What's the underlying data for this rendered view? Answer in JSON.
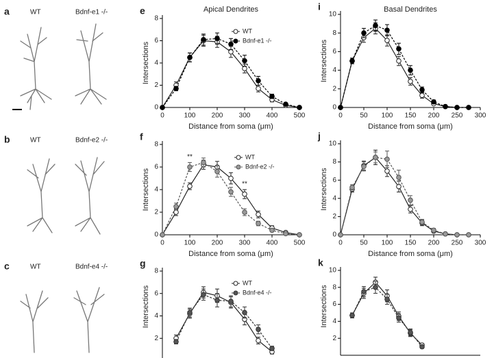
{
  "neurons": [
    {
      "letter": "a",
      "labels": [
        "WT",
        "Bdnf-e1 -/-"
      ]
    },
    {
      "letter": "b",
      "labels": [
        "WT",
        "Bdnf-e2 -/-"
      ]
    },
    {
      "letter": "c",
      "labels": [
        "WT",
        "Bdnf-e4 -/-"
      ]
    }
  ],
  "chart_data": [
    {
      "type": "line",
      "panel": "e",
      "title": "Apical Dendrites",
      "x_label": "Distance from soma (μm)",
      "y_label": "Intersections",
      "x": [
        0,
        50,
        100,
        150,
        200,
        250,
        300,
        350,
        400,
        450,
        500
      ],
      "xlim": [
        0,
        500
      ],
      "xticks": [
        0,
        100,
        200,
        300,
        400,
        500
      ],
      "ylim": [
        0,
        8
      ],
      "yticks": [
        0,
        2,
        4,
        6,
        8
      ],
      "series": [
        {
          "name": "WT",
          "color": "#222222",
          "fill": "#ffffff",
          "dashed": false,
          "values": [
            0,
            2.0,
            4.5,
            6.0,
            5.9,
            5.0,
            3.5,
            1.7,
            0.7,
            0.2,
            0
          ],
          "errors": [
            0,
            0.3,
            0.4,
            0.5,
            0.5,
            0.5,
            0.4,
            0.3,
            0.2,
            0.1,
            0
          ]
        },
        {
          "name": "Bdnf-e1 -/-",
          "color": "#000000",
          "fill": "#000000",
          "dashed": true,
          "values": [
            0,
            1.7,
            4.5,
            6.1,
            6.2,
            5.7,
            4.2,
            2.4,
            1.0,
            0.3,
            0
          ],
          "errors": [
            0,
            0.2,
            0.4,
            0.5,
            0.5,
            0.5,
            0.5,
            0.4,
            0.2,
            0.1,
            0
          ]
        }
      ]
    },
    {
      "type": "line",
      "panel": "f",
      "x_label": "Distance from soma (μm)",
      "y_label": "Intersections",
      "annotations": [
        "**",
        "**"
      ],
      "x": [
        0,
        50,
        100,
        150,
        200,
        250,
        300,
        350,
        400,
        450,
        500
      ],
      "xlim": [
        0,
        500
      ],
      "xticks": [
        0,
        100,
        200,
        300,
        400,
        500
      ],
      "ylim": [
        0,
        8
      ],
      "yticks": [
        0,
        2,
        4,
        6,
        8
      ],
      "series": [
        {
          "name": "WT",
          "color": "#222222",
          "fill": "#ffffff",
          "dashed": false,
          "values": [
            0,
            2.0,
            4.3,
            6.2,
            6.0,
            5.0,
            3.6,
            1.8,
            0.6,
            0.2,
            0
          ],
          "errors": [
            0,
            0.3,
            0.3,
            0.4,
            0.5,
            0.5,
            0.4,
            0.3,
            0.2,
            0.1,
            0
          ]
        },
        {
          "name": "Bdnf-e2 -/-",
          "color": "#555555",
          "fill": "#999999",
          "dashed": true,
          "values": [
            0,
            2.5,
            6.0,
            6.4,
            5.6,
            3.8,
            2.0,
            1.0,
            0.4,
            0.1,
            0
          ],
          "errors": [
            0,
            0.3,
            0.4,
            0.4,
            0.5,
            0.4,
            0.3,
            0.2,
            0.1,
            0.1,
            0
          ]
        }
      ]
    },
    {
      "type": "line",
      "panel": "g",
      "y_label": "Intersections",
      "x": [
        50,
        100,
        150,
        200,
        250,
        300,
        350,
        400
      ],
      "xlim": [
        0,
        500
      ],
      "ylim": [
        0,
        8
      ],
      "yticks": [
        2,
        4,
        6,
        8
      ],
      "series": [
        {
          "name": "WT",
          "color": "#222222",
          "fill": "#ffffff",
          "dashed": false,
          "values": [
            2.0,
            4.2,
            6.1,
            5.8,
            5.2,
            3.7,
            1.8,
            0.8
          ],
          "errors": [
            0.3,
            0.4,
            0.5,
            0.6,
            0.5,
            0.5,
            0.3,
            0.2
          ]
        },
        {
          "name": "Bdnf-e4 -/-",
          "color": "#333333",
          "fill": "#555555",
          "dashed": true,
          "values": [
            1.7,
            4.3,
            5.9,
            5.4,
            5.3,
            4.3,
            2.8,
            1.1
          ],
          "errors": [
            0.2,
            0.4,
            0.5,
            0.6,
            0.5,
            0.5,
            0.4,
            0.2
          ]
        }
      ]
    },
    {
      "type": "line",
      "panel": "i",
      "title": "Basal Dendrites",
      "x_label": "Distance from soma (μm)",
      "y_label": "Intersections",
      "x": [
        0,
        25,
        50,
        75,
        100,
        125,
        150,
        175,
        200,
        225,
        250,
        275
      ],
      "xlim": [
        0,
        300
      ],
      "xticks": [
        0,
        50,
        100,
        150,
        200,
        250,
        300
      ],
      "ylim": [
        0,
        10
      ],
      "yticks": [
        0,
        2,
        4,
        6,
        8,
        10
      ],
      "series": [
        {
          "name": "WT",
          "color": "#222222",
          "fill": "#ffffff",
          "dashed": false,
          "values": [
            0,
            5.0,
            7.5,
            8.5,
            7.2,
            5.0,
            2.8,
            1.3,
            0.4,
            0.1,
            0,
            0
          ],
          "errors": [
            0,
            0.3,
            0.5,
            0.6,
            0.6,
            0.5,
            0.4,
            0.3,
            0.1,
            0.1,
            0,
            0
          ]
        },
        {
          "name": "Bdnf-e1 -/-",
          "color": "#000000",
          "fill": "#000000",
          "dashed": true,
          "values": [
            0,
            5.0,
            8.0,
            8.8,
            8.3,
            6.3,
            4.0,
            1.9,
            0.6,
            0.1,
            0,
            0
          ],
          "errors": [
            0,
            0.3,
            0.5,
            0.6,
            0.6,
            0.6,
            0.5,
            0.3,
            0.2,
            0.1,
            0,
            0
          ]
        }
      ]
    },
    {
      "type": "line",
      "panel": "j",
      "x_label": "Distance from soma (μm)",
      "y_label": "Intersections",
      "x": [
        0,
        25,
        50,
        75,
        100,
        125,
        150,
        175,
        200,
        225,
        250,
        275
      ],
      "xlim": [
        0,
        300
      ],
      "xticks": [
        0,
        50,
        100,
        150,
        200,
        250,
        300
      ],
      "ylim": [
        0,
        10
      ],
      "yticks": [
        0,
        2,
        4,
        6,
        8,
        10
      ],
      "series": [
        {
          "name": "WT",
          "color": "#222222",
          "fill": "#ffffff",
          "dashed": false,
          "values": [
            0,
            5.0,
            7.6,
            8.5,
            7.0,
            5.3,
            2.8,
            1.3,
            0.4,
            0.1,
            0,
            0
          ],
          "errors": [
            0,
            0.3,
            0.5,
            0.8,
            0.6,
            0.6,
            0.4,
            0.3,
            0.1,
            0.1,
            0,
            0
          ]
        },
        {
          "name": "Bdnf-e2 -/-",
          "color": "#555555",
          "fill": "#999999",
          "dashed": true,
          "values": [
            0,
            5.2,
            7.5,
            8.5,
            8.3,
            6.3,
            3.8,
            1.4,
            0.5,
            0.1,
            0,
            0
          ],
          "errors": [
            0,
            0.3,
            0.5,
            0.6,
            0.9,
            0.8,
            0.5,
            0.3,
            0.2,
            0.1,
            0,
            0
          ]
        }
      ]
    },
    {
      "type": "line",
      "panel": "k",
      "y_label": "Intersections",
      "x": [
        25,
        50,
        75,
        100,
        125,
        150,
        175
      ],
      "xlim": [
        0,
        300
      ],
      "ylim": [
        0,
        10
      ],
      "yticks": [
        2,
        4,
        6,
        8,
        10
      ],
      "series": [
        {
          "name": "WT",
          "color": "#222222",
          "fill": "#ffffff",
          "dashed": false,
          "values": [
            4.7,
            7.3,
            8.6,
            7.0,
            4.6,
            2.6,
            1.2
          ],
          "errors": [
            0.3,
            0.6,
            0.6,
            0.7,
            0.5,
            0.4,
            0.2
          ]
        },
        {
          "name": "Bdnf-e4 -/-",
          "color": "#333333",
          "fill": "#555555",
          "dashed": true,
          "values": [
            4.7,
            7.5,
            8.0,
            6.6,
            4.4,
            2.7,
            1.0
          ],
          "errors": [
            0.3,
            0.6,
            0.7,
            0.6,
            0.5,
            0.4,
            0.2
          ]
        }
      ]
    }
  ]
}
